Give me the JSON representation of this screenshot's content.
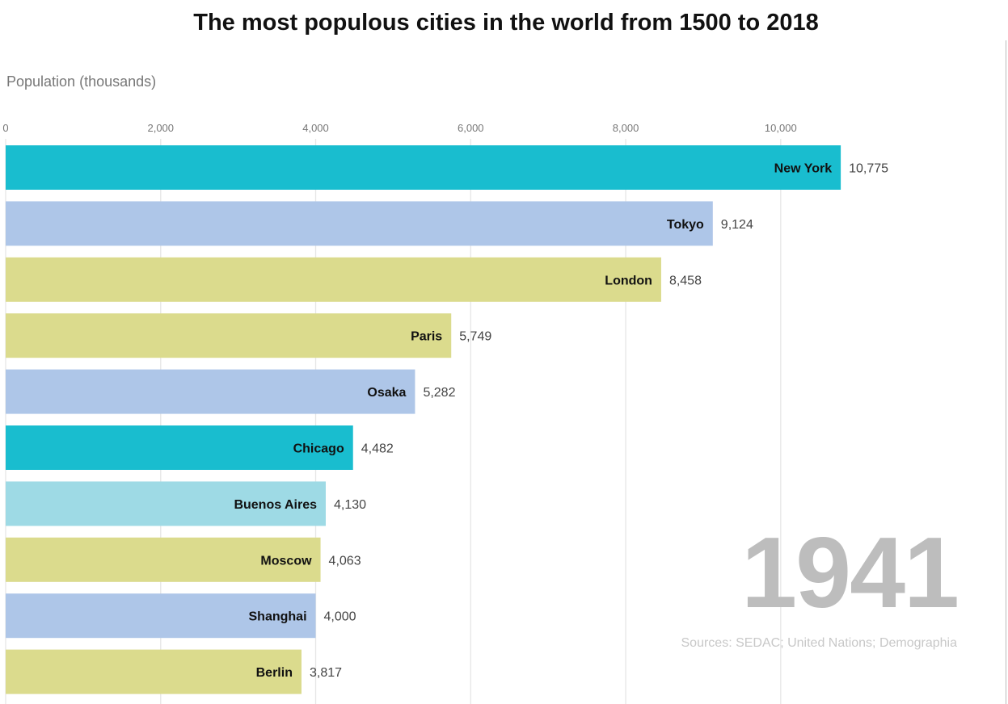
{
  "chart_data": {
    "type": "bar",
    "orientation": "horizontal",
    "title": "The most populous cities in the world from 1500 to 2018",
    "xlabel": "Population (thousands)",
    "xlim": [
      0,
      11700
    ],
    "xticks": [
      0,
      2000,
      4000,
      6000,
      8000,
      10000
    ],
    "xtick_labels": [
      "0",
      "2,000",
      "4,000",
      "6,000",
      "8,000",
      "10,000"
    ],
    "grid": true,
    "categories": [
      "New York",
      "Tokyo",
      "London",
      "Paris",
      "Osaka",
      "Chicago",
      "Buenos Aires",
      "Moscow",
      "Shanghai",
      "Berlin"
    ],
    "values": [
      10775,
      9124,
      8458,
      5749,
      5282,
      4482,
      4130,
      4063,
      4000,
      3817
    ],
    "value_labels": [
      "10,775",
      "9,124",
      "8,458",
      "5,749",
      "5,282",
      "4,482",
      "4,130",
      "4,063",
      "4,000",
      "3,817"
    ],
    "bar_colors": [
      "#19bdcf",
      "#aec6e8",
      "#dbdb8d",
      "#dbdb8d",
      "#aec6e8",
      "#19bdcf",
      "#9edae5",
      "#dbdb8d",
      "#aec6e8",
      "#dbdb8d"
    ],
    "year": "1941",
    "source": "Sources: SEDAC; United Nations; Demographia"
  }
}
